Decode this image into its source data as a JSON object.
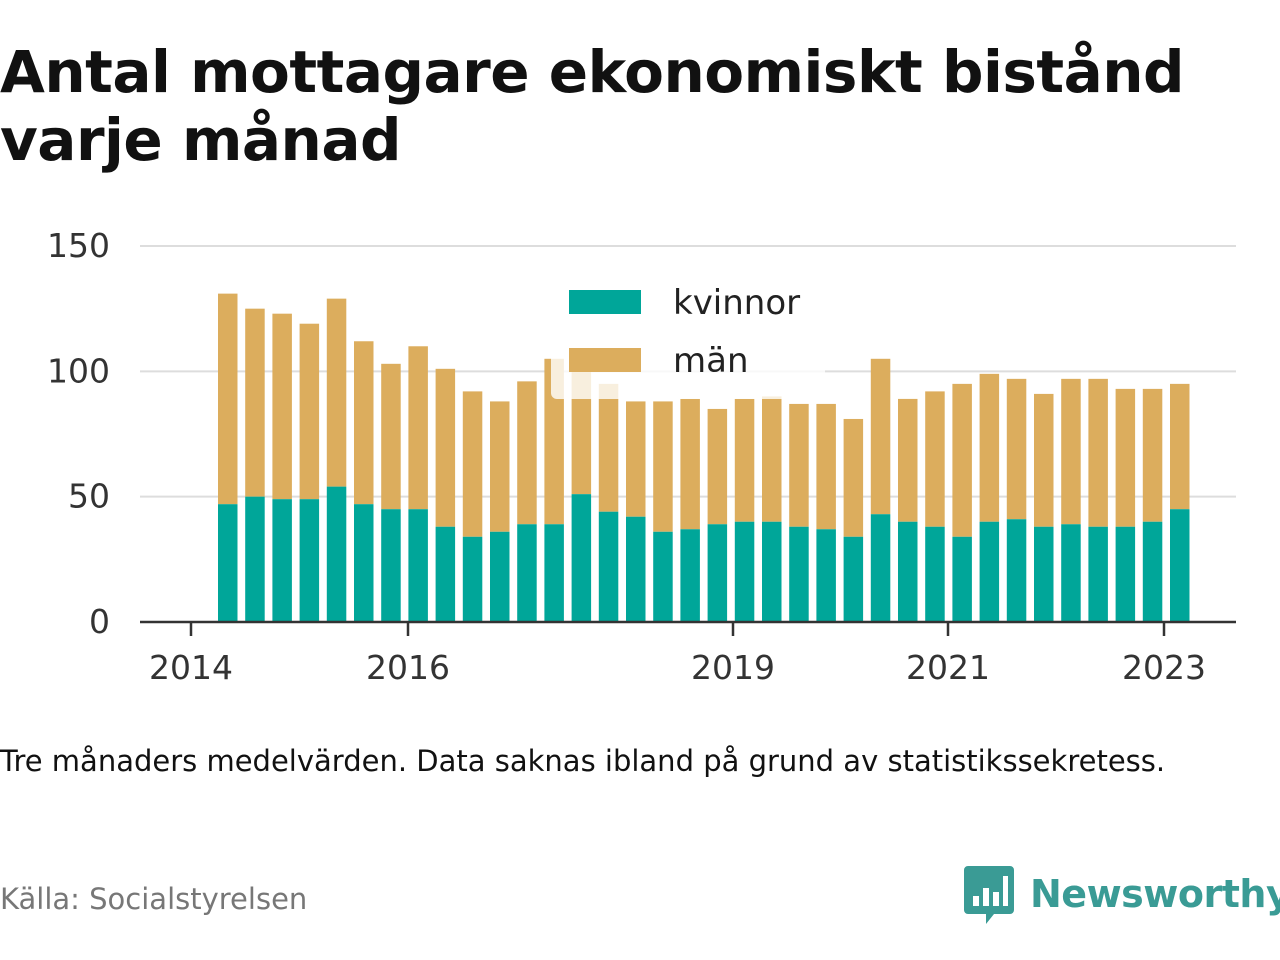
{
  "title": "Antal mottagare ekonomiskt bistånd varje månad",
  "note": "Tre månaders medelvärden. Data saknas ibland på grund av statistikssekretess.",
  "source": "Källa: Socialstyrelsen",
  "brand": {
    "name": "Newsworthy",
    "icon": "newsworthy-logo-icon",
    "color": "#3a9b95"
  },
  "colors": {
    "kvinnor": "#00a699",
    "man": "#dcad5d",
    "grid": "#dddddd",
    "axis": "#333333",
    "text": "#333333"
  },
  "chart_data": {
    "type": "bar",
    "stacked": true,
    "x_tick_labels": [
      "2014",
      "2016",
      "2019",
      "2021",
      "2023"
    ],
    "ylim": [
      0,
      150
    ],
    "y_ticks": [
      0,
      50,
      100,
      150
    ],
    "grid": true,
    "legend_position": "top-center",
    "series": [
      {
        "name": "kvinnor",
        "color": "#00a699",
        "values": [
          47,
          50,
          49,
          49,
          54,
          47,
          45,
          45,
          38,
          34,
          36,
          39,
          39,
          51,
          44,
          42,
          36,
          37,
          39,
          40,
          40,
          38,
          37,
          34,
          43,
          40,
          38,
          34,
          40,
          41,
          38,
          39,
          38,
          38,
          40,
          45
        ]
      },
      {
        "name": "män",
        "color": "#dcad5d",
        "values": [
          84,
          75,
          74,
          70,
          75,
          65,
          58,
          65,
          63,
          58,
          52,
          57,
          66,
          49,
          51,
          46,
          52,
          52,
          46,
          49,
          50,
          49,
          50,
          47,
          62,
          49,
          54,
          61,
          59,
          56,
          53,
          58,
          59,
          55,
          53,
          50
        ]
      }
    ]
  }
}
